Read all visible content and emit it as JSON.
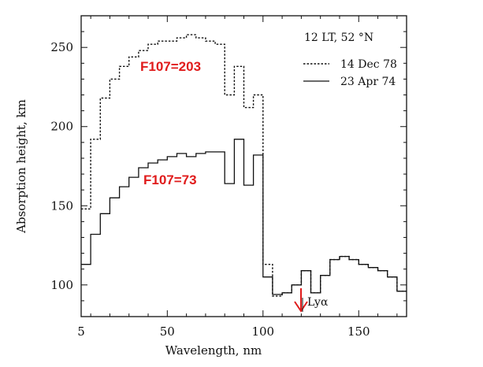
{
  "chart_data": {
    "type": "line",
    "title": "",
    "xlabel": "Wavelength, nm",
    "ylabel": "Absorption height, km",
    "xlim": [
      5,
      175
    ],
    "ylim": [
      80,
      270
    ],
    "x_ticks": [
      5,
      50,
      100,
      150
    ],
    "y_ticks": [
      100,
      150,
      200,
      250
    ],
    "x_tick_labels": [
      "5",
      "50",
      "100",
      "150"
    ],
    "y_tick_labels": [
      "100",
      "150",
      "200",
      "250"
    ],
    "legend_header": "12 LT, 52 °N",
    "legend_position": "top-right",
    "series": [
      {
        "name": "14 Dec 78",
        "style": "dotted",
        "x": [
          5,
          10,
          15,
          20,
          25,
          30,
          35,
          40,
          45,
          50,
          55,
          60,
          65,
          70,
          75,
          80,
          85,
          90,
          95,
          100,
          105,
          110,
          115,
          120,
          125,
          130,
          135,
          140,
          145,
          150,
          155,
          160,
          165,
          170,
          175
        ],
        "y": [
          148,
          192,
          218,
          230,
          238,
          244,
          248,
          252,
          254,
          254,
          256,
          258,
          256,
          254,
          252,
          220,
          238,
          212,
          220,
          113,
          93,
          95,
          100,
          109,
          95,
          106,
          116,
          118,
          116,
          113,
          111,
          109,
          105,
          96,
          96
        ]
      },
      {
        "name": "23 Apr 74",
        "style": "solid",
        "x": [
          5,
          10,
          15,
          20,
          25,
          30,
          35,
          40,
          45,
          50,
          55,
          60,
          65,
          70,
          75,
          80,
          85,
          90,
          95,
          100,
          105,
          110,
          115,
          120,
          125,
          130,
          135,
          140,
          145,
          150,
          155,
          160,
          165,
          170,
          175
        ],
        "y": [
          113,
          132,
          145,
          155,
          162,
          168,
          174,
          177,
          179,
          181,
          183,
          181,
          183,
          184,
          184,
          164,
          192,
          163,
          182,
          105,
          94,
          95,
          100,
          109,
          95,
          106,
          116,
          118,
          116,
          113,
          111,
          109,
          105,
          96,
          96
        ]
      }
    ],
    "annotations": [
      {
        "text": "F107=203",
        "x": 30,
        "y": 240,
        "color": "#e01b1b"
      },
      {
        "text": "F107=73",
        "x": 37,
        "y": 168,
        "color": "#e01b1b"
      },
      {
        "text": "Lyα",
        "x": 121.6,
        "arrow_color": "#e01b1b"
      }
    ]
  }
}
